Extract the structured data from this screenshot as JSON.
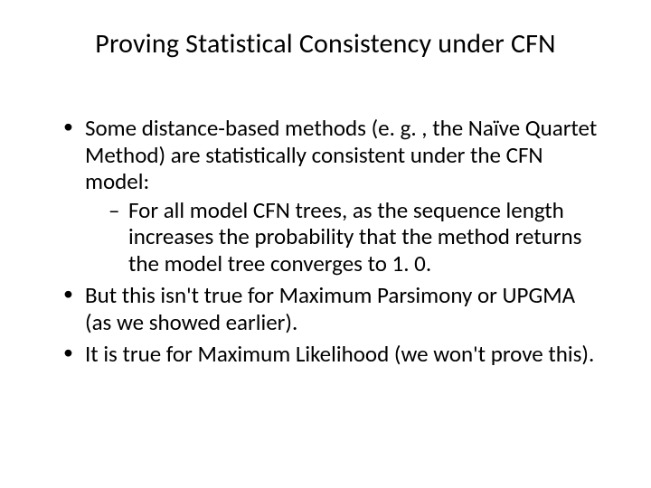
{
  "title": "Proving Statistical Consistency under CFN",
  "bullets": [
    {
      "text": "Some distance-based methods (e. g. , the Naïve Quartet Method) are statistically consistent under the CFN model:",
      "sub": [
        "For all model CFN trees, as the sequence length increases the probability that the method returns the model tree converges to 1. 0."
      ]
    },
    {
      "text": "But this isn't true for Maximum Parsimony or UPGMA (as we showed earlier)."
    },
    {
      "text": "It is true for Maximum Likelihood (we won't prove this)."
    }
  ]
}
